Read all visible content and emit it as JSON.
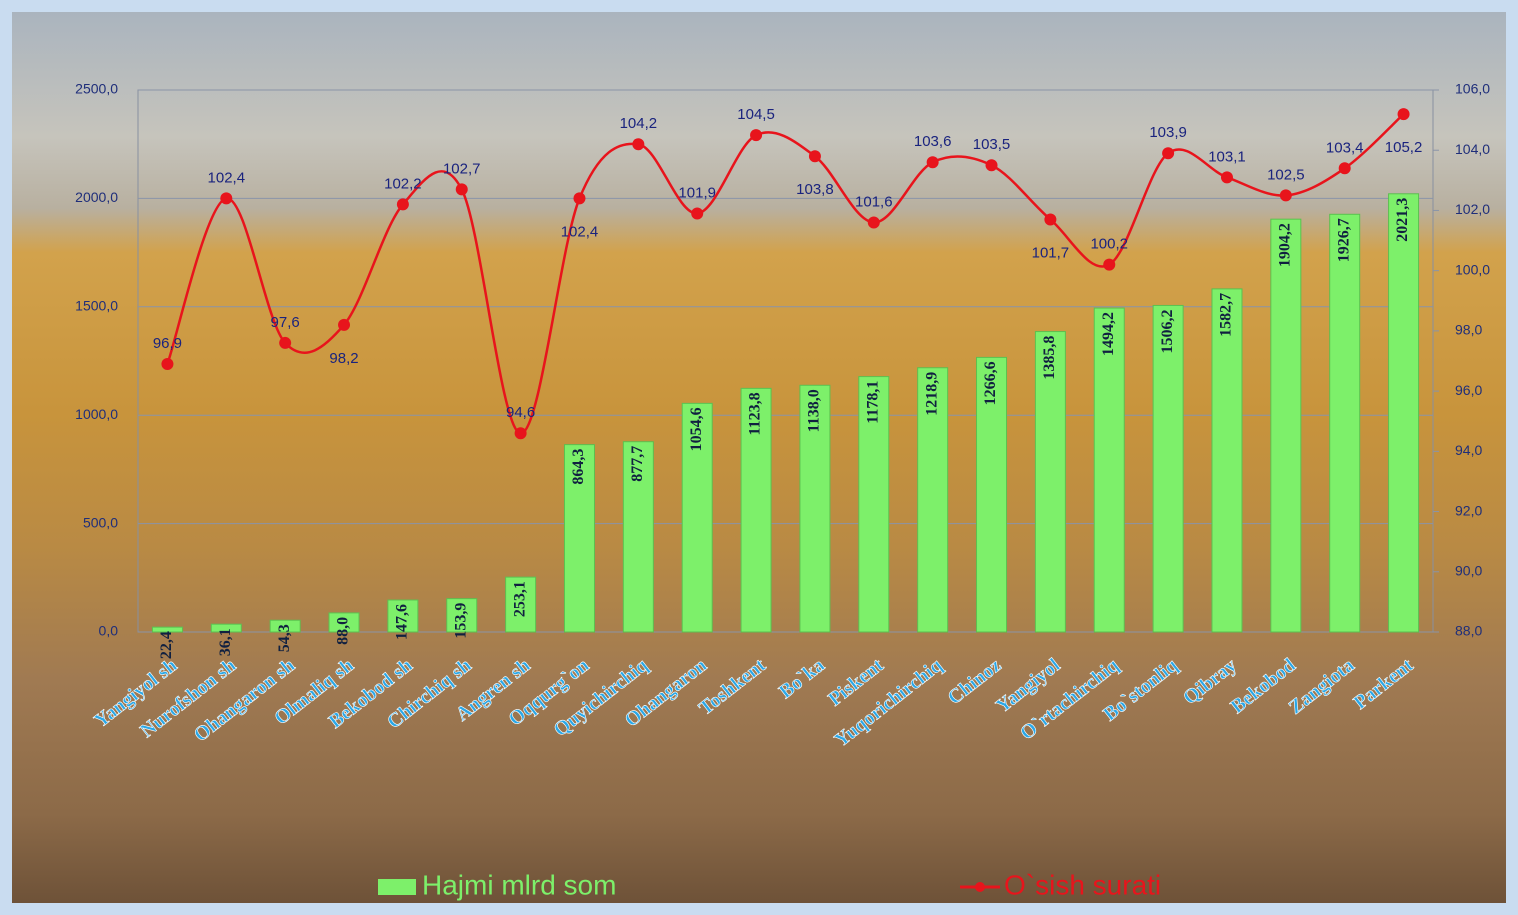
{
  "chart_data": {
    "type": "combo",
    "categories": [
      "Yangiyol sh",
      "Nurofshon sh",
      "Ohangaron sh",
      "Olmaliq sh",
      "Bekobod sh",
      "Chirchiq sh",
      "Angren sh",
      "Oqqurg`on",
      "Quyichirchiq",
      "Ohangaron",
      "Toshkent",
      "Bo`ka",
      "Piskent",
      "Yuqorichirchiq",
      "Chinoz",
      "Yangiyol",
      "O`rtachirchiq",
      "Bo`stonliq",
      "Qibray",
      "Bekobod",
      "Zangiota",
      "Parkent"
    ],
    "series": [
      {
        "name": "Hajmi mlrd som",
        "type": "bar",
        "color": "#7df06a",
        "values": [
          22.4,
          36.1,
          54.3,
          88.0,
          147.6,
          153.9,
          253.1,
          864.3,
          877.7,
          1054.6,
          1123.8,
          1138.0,
          1178.1,
          1218.9,
          1266.6,
          1385.8,
          1494.2,
          1506.2,
          1582.7,
          1904.2,
          1926.7,
          2021.3
        ],
        "value_labels": [
          "22,4",
          "36,1",
          "54,3",
          "88,0",
          "147,6",
          "153,9",
          "253,1",
          "864,3",
          "877,7",
          "1054,6",
          "1123,8",
          "1138,0",
          "1178,1",
          "1218,9",
          "1266,6",
          "1385,8",
          "1494,2",
          "1506,2",
          "1582,7",
          "1904,2",
          "1926,7",
          "2021,3"
        ]
      },
      {
        "name": "O`sish surati",
        "type": "line",
        "axis": "y2",
        "color": "#e8141c",
        "values": [
          96.9,
          102.4,
          97.6,
          98.2,
          102.2,
          102.7,
          94.6,
          102.4,
          104.2,
          101.9,
          104.5,
          103.8,
          101.6,
          103.6,
          103.5,
          101.7,
          100.2,
          103.9,
          103.1,
          102.5,
          103.4,
          105.2
        ],
        "value_labels": [
          "96,9",
          "102,4",
          "97,6",
          "98,2",
          "102,2",
          "102,7",
          "94,6",
          "102,4",
          "104,2",
          "101,9",
          "104,5",
          "103,8",
          "101,6",
          "103,6",
          "103,5",
          "101,7",
          "100,2",
          "103,9",
          "103,1",
          "102,5",
          "103,4",
          "105,2"
        ]
      }
    ],
    "ylim": [
      0,
      2500
    ],
    "yticks": [
      {
        "value": 0,
        "label": "0,0"
      },
      {
        "value": 500,
        "label": "500,0"
      },
      {
        "value": 1000,
        "label": "1000,0"
      },
      {
        "value": 1500,
        "label": "1500,0"
      },
      {
        "value": 2000,
        "label": "2000,0"
      },
      {
        "value": 2500,
        "label": "2500,0"
      }
    ],
    "y2lim": [
      88,
      106
    ],
    "y2ticks": [
      {
        "value": 88,
        "label": "88,0"
      },
      {
        "value": 90,
        "label": "90,0"
      },
      {
        "value": 92,
        "label": "92,0"
      },
      {
        "value": 94,
        "label": "94,0"
      },
      {
        "value": 96,
        "label": "96,0"
      },
      {
        "value": 98,
        "label": "98,0"
      },
      {
        "value": 100,
        "label": "100,0"
      },
      {
        "value": 102,
        "label": "102,0"
      },
      {
        "value": 104,
        "label": "104,0"
      },
      {
        "value": 106,
        "label": "106,0"
      }
    ],
    "grid": true,
    "legend": "bottom"
  }
}
